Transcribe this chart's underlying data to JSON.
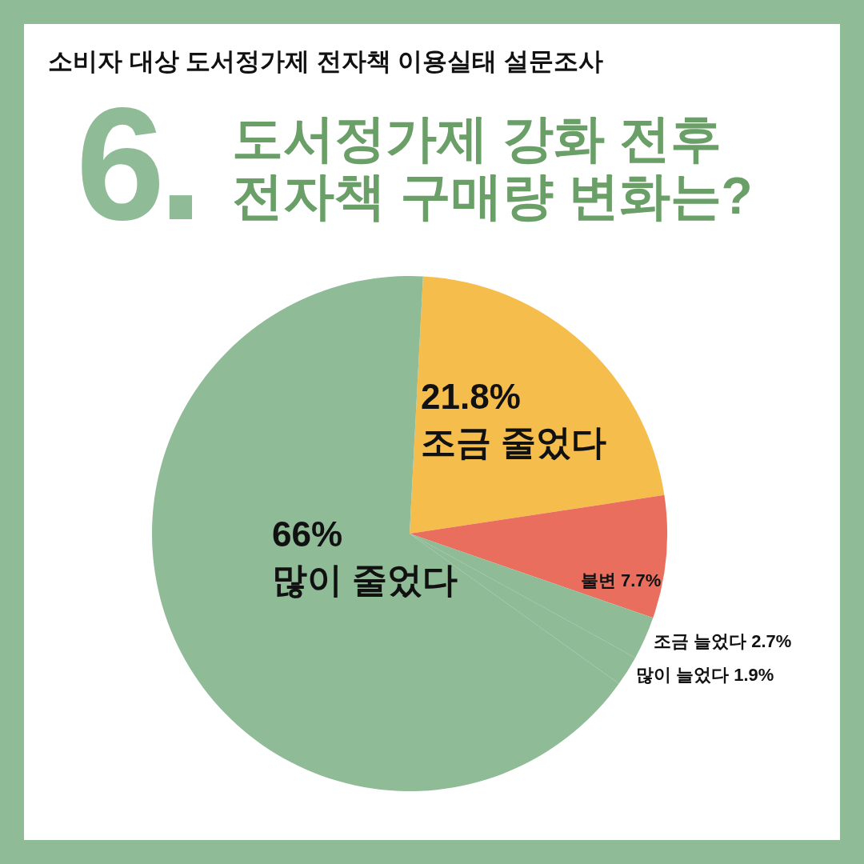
{
  "chart_data": {
    "type": "pie",
    "subtitle": "소비자 대상 도서정가제 전자책 이용실태 설문조사",
    "title": "6.\n도서정가제 강화 전후\n전자책 구매량 변화는?",
    "categories": [
      "조금 줄었다",
      "불변",
      "조금 늘었다",
      "많이 늘었다",
      "많이 줄었다"
    ],
    "values": [
      21.8,
      7.7,
      2.7,
      1.9,
      66
    ],
    "value_labels": [
      "21.8%",
      "7.7%",
      "2.7%",
      "1.9%",
      "66%"
    ],
    "colors": [
      "#f5be4c",
      "#ea6e5e",
      "#8fbb97",
      "#8fbb97",
      "#8fbb97"
    ],
    "legend": false
  }
}
